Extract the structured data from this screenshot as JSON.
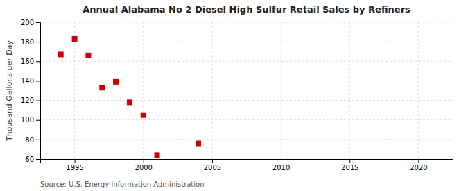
{
  "chart_data": {
    "type": "scatter",
    "title": "Annual Alabama No 2 Diesel High Sulfur Retail Sales by Refiners",
    "y_label": "Thousand Gallons per Day",
    "annotations": [
      "Source: U.S. Energy Information Administration"
    ],
    "x": [
      1994,
      1995,
      1996,
      1997,
      1998,
      1999,
      2000,
      2001,
      2004
    ],
    "values": [
      167,
      183,
      166,
      133,
      139,
      118,
      105,
      64,
      76
    ],
    "color": "#cc0000",
    "marker": "square",
    "xlim": [
      1992.5,
      2022.5
    ],
    "ylim": [
      60,
      200
    ],
    "xticks": [
      1995,
      2000,
      2005,
      2010,
      2015,
      2020
    ],
    "yticks": [
      60,
      80,
      100,
      120,
      140,
      160,
      180,
      200
    ],
    "grid": true
  }
}
